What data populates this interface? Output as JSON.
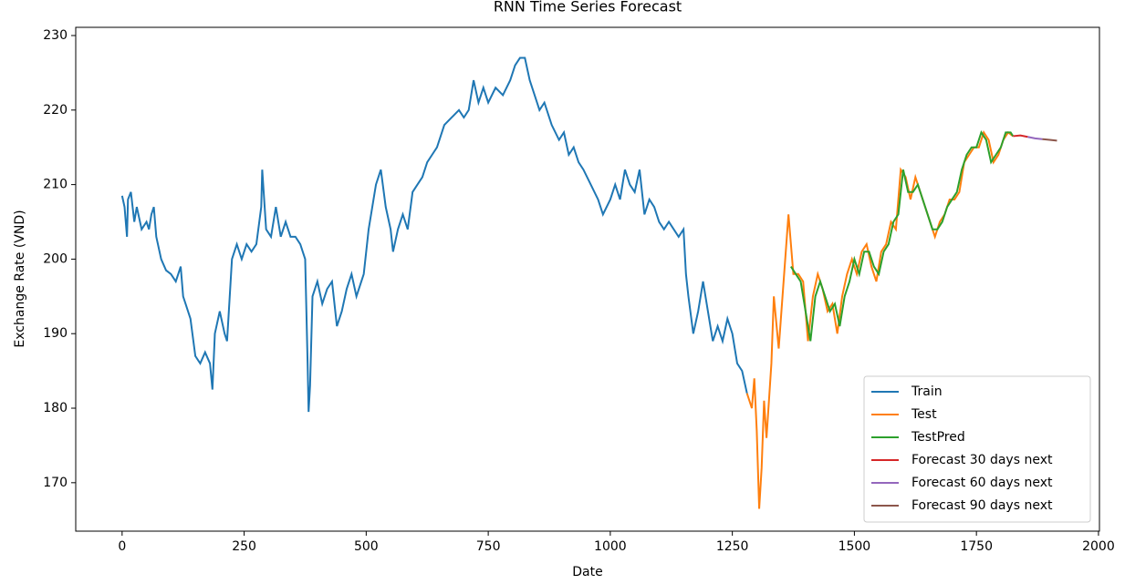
{
  "chart_data": {
    "type": "line",
    "title": "RNN Time Series Forecast",
    "x_label": "Date",
    "y_label": "Exchange Rate (VND)",
    "xlim": [
      -95,
      2002
    ],
    "ylim": [
      163.5,
      231.1
    ],
    "xticks": [
      0,
      250,
      500,
      750,
      1000,
      1250,
      1500,
      1750,
      2000
    ],
    "yticks": [
      170,
      180,
      190,
      200,
      210,
      220,
      230
    ],
    "legend": "lower right",
    "grid": false,
    "series": [
      {
        "name": "Train",
        "color": "#1f77b4",
        "x": [
          0,
          5,
          10,
          12,
          18,
          25,
          30,
          40,
          50,
          55,
          60,
          65,
          70,
          80,
          90,
          100,
          110,
          120,
          125,
          130,
          140,
          150,
          160,
          170,
          180,
          185,
          190,
          200,
          210,
          215,
          225,
          235,
          245,
          255,
          265,
          275,
          285,
          287,
          295,
          305,
          315,
          325,
          335,
          345,
          355,
          365,
          375,
          380,
          382,
          385,
          390,
          400,
          410,
          420,
          430,
          440,
          450,
          460,
          470,
          480,
          495,
          505,
          515,
          520,
          530,
          540,
          550,
          555,
          565,
          575,
          585,
          595,
          605,
          615,
          625,
          635,
          645,
          660,
          675,
          690,
          700,
          710,
          720,
          730,
          740,
          750,
          765,
          780,
          795,
          805,
          815,
          825,
          835,
          845,
          855,
          865,
          880,
          895,
          905,
          915,
          925,
          935,
          945,
          960,
          975,
          985,
          1000,
          1010,
          1020,
          1030,
          1040,
          1050,
          1060,
          1070,
          1080,
          1090,
          1100,
          1110,
          1120,
          1130,
          1140,
          1150,
          1155,
          1160,
          1170,
          1180,
          1190,
          1200,
          1210,
          1220,
          1230,
          1240,
          1250,
          1260,
          1270,
          1280
        ],
        "values": [
          208.5,
          207,
          203,
          208,
          209,
          205,
          207,
          204,
          205,
          204,
          206,
          207,
          203,
          200,
          198.5,
          198,
          197,
          199,
          195,
          194,
          192,
          187,
          186,
          187.5,
          186,
          182.5,
          190,
          193,
          190,
          189,
          200,
          202,
          200,
          202,
          201,
          202,
          207,
          212,
          204,
          203,
          207,
          203,
          205,
          203,
          203,
          202,
          200,
          186,
          179.5,
          183,
          195,
          197,
          194,
          196,
          197,
          191,
          193,
          196,
          198,
          195,
          198,
          204,
          208,
          210,
          212,
          207,
          204,
          201,
          204,
          206,
          204,
          209,
          210,
          211,
          213,
          214,
          215,
          218,
          219,
          220,
          219,
          220,
          224,
          221,
          223,
          221,
          223,
          222,
          224,
          226,
          227,
          227,
          224,
          222,
          220,
          221,
          218,
          216,
          217,
          214,
          215,
          213,
          212,
          210,
          208,
          206,
          208,
          210,
          208,
          212,
          210,
          209,
          212,
          206,
          208,
          207,
          205,
          204,
          205,
          204,
          203,
          204,
          198,
          195,
          190,
          193,
          197,
          193,
          189,
          191,
          189,
          192,
          190,
          186,
          185,
          182
        ]
      },
      {
        "name": "Test",
        "color": "#ff7f0e",
        "x": [
          1280,
          1290,
          1295,
          1300,
          1305,
          1310,
          1315,
          1320,
          1330,
          1335,
          1345,
          1355,
          1365,
          1375,
          1385,
          1395,
          1405,
          1415,
          1425,
          1435,
          1445,
          1455,
          1465,
          1475,
          1485,
          1495,
          1505,
          1515,
          1525,
          1535,
          1545,
          1555,
          1565,
          1575,
          1585,
          1595,
          1605,
          1615,
          1625,
          1635,
          1645,
          1655,
          1665,
          1675,
          1685,
          1695,
          1705,
          1715,
          1725,
          1735,
          1745,
          1755,
          1765,
          1775,
          1785,
          1795,
          1805,
          1815,
          1825
        ],
        "values": [
          182,
          180,
          184,
          177,
          166.5,
          172,
          181,
          176,
          186,
          195,
          188,
          197,
          206,
          198,
          198,
          197,
          189,
          195,
          198,
          196,
          193,
          194,
          190,
          195,
          198,
          200,
          198,
          201,
          202,
          199,
          197,
          201,
          202,
          205,
          204,
          212,
          211,
          208,
          211,
          209,
          207,
          205,
          203,
          205,
          206,
          208,
          208,
          209,
          213,
          214,
          215,
          215,
          217,
          216,
          213,
          214,
          216,
          217,
          216.5
        ]
      },
      {
        "name": "TestPred",
        "color": "#2ca02c",
        "x": [
          1370,
          1380,
          1390,
          1400,
          1410,
          1420,
          1430,
          1440,
          1450,
          1460,
          1470,
          1480,
          1490,
          1500,
          1510,
          1520,
          1530,
          1540,
          1550,
          1560,
          1570,
          1580,
          1590,
          1600,
          1610,
          1620,
          1630,
          1640,
          1650,
          1660,
          1670,
          1680,
          1690,
          1700,
          1710,
          1720,
          1730,
          1740,
          1750,
          1760,
          1770,
          1780,
          1790,
          1800,
          1810,
          1820,
          1825
        ],
        "values": [
          199,
          198,
          197,
          193,
          189,
          195,
          197,
          195,
          193,
          194,
          191,
          195,
          197,
          200,
          198,
          201,
          201,
          199,
          198,
          201,
          202,
          205,
          206,
          212,
          209,
          209,
          210,
          208,
          206,
          204,
          204,
          205,
          207,
          208,
          209,
          212,
          214,
          215,
          215,
          217,
          216,
          213,
          214,
          215,
          217,
          217,
          216.5
        ]
      },
      {
        "name": "Forecast 30 days next",
        "color": "#d62728",
        "x": [
          1825,
          1840,
          1855
        ],
        "values": [
          216.5,
          216.6,
          216.4
        ]
      },
      {
        "name": "Forecast 60 days next",
        "color": "#9467bd",
        "x": [
          1855,
          1870,
          1885
        ],
        "values": [
          216.4,
          216.2,
          216.1
        ]
      },
      {
        "name": "Forecast 90 days next",
        "color": "#8c564b",
        "x": [
          1885,
          1900,
          1915
        ],
        "values": [
          216.1,
          216.0,
          215.9
        ]
      }
    ]
  }
}
